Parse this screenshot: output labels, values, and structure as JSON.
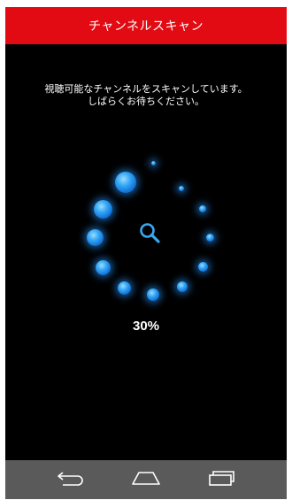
{
  "header": {
    "title": "チャンネルスキャン"
  },
  "message": {
    "line1": "視聴可能なチャンネルをスキャンしています。",
    "line2": "しばらくお待ちください。"
  },
  "progress": {
    "percent_label": "30%",
    "value": 0.3
  },
  "spinner": {
    "center_icon": "search-icon"
  },
  "navbar": {
    "buttons": [
      "back-icon",
      "home-icon",
      "recent-apps-icon"
    ]
  },
  "colors": {
    "title_bar": "#e30b13",
    "background": "#000000",
    "accent": "#35a8f5",
    "nav_bar": "#5a5a5a"
  }
}
